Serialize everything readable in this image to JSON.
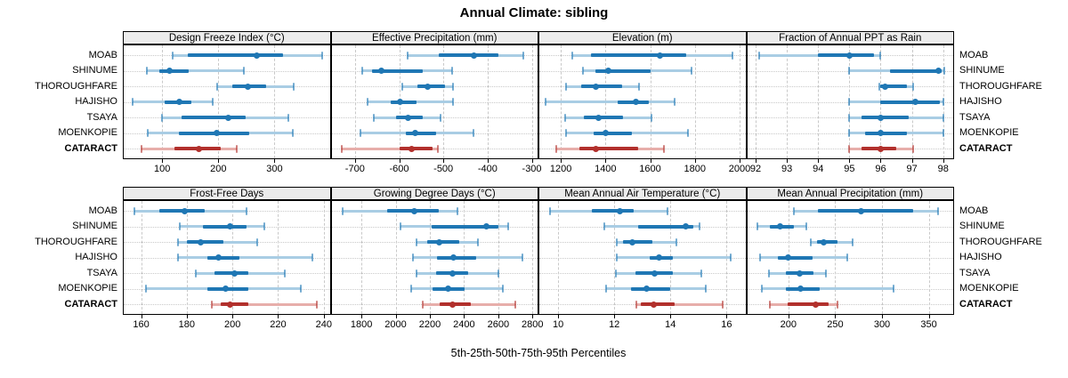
{
  "title": "Annual Climate: sibling",
  "xlabel": "5th-25th-50th-75th-95th Percentiles",
  "sites": [
    "MOAB",
    "SHINUME",
    "THOROUGHFARE",
    "HAJISHO",
    "TSAYA",
    "MOENKOPIE",
    "CATARACT"
  ],
  "highlight_site": "CATARACT",
  "colors": {
    "series_dark": "#1f77b4",
    "series_light": "#a9cde4",
    "highlight_dark": "#b2302c",
    "highlight_light": "#e7aeaa",
    "strip_bg": "#ececec",
    "grid": "#c9c9c9",
    "border": "#000000"
  },
  "chart_data": {
    "type": "percentile-dotplot",
    "percentiles": [
      5,
      25,
      50,
      75,
      95
    ],
    "legend_position": "none",
    "grid": "dashed-vertical, dotted-horizontal",
    "sites": [
      "MOAB",
      "SHINUME",
      "THOROUGHFARE",
      "HAJISHO",
      "TSAYA",
      "MOENKOPIE",
      "CATARACT"
    ],
    "panels": [
      {
        "title": "Design Freeze Index (°C)",
        "row": 0,
        "col": 0,
        "xlim": [
          30,
          400
        ],
        "tick_values": [
          100,
          200,
          300
        ],
        "tick_labels": [
          "100",
          "200",
          "300"
        ],
        "values": [
          [
            118,
            145,
            268,
            315,
            385
          ],
          [
            72,
            95,
            113,
            148,
            246
          ],
          [
            198,
            225,
            252,
            285,
            335
          ],
          [
            48,
            105,
            130,
            152,
            190
          ],
          [
            100,
            135,
            218,
            248,
            325
          ],
          [
            75,
            130,
            197,
            255,
            333
          ],
          [
            64,
            122,
            165,
            204,
            233
          ]
        ]
      },
      {
        "title": "Effective Precipitation (mm)",
        "row": 0,
        "col": 1,
        "xlim": [
          -755,
          -285
        ],
        "tick_values": [
          -700,
          -600,
          -500,
          -400,
          -300
        ],
        "tick_labels": [
          "-700",
          "-600",
          "-500",
          "-400",
          "-300"
        ],
        "values": [
          [
            -580,
            -510,
            -430,
            -375,
            -320
          ],
          [
            -683,
            -662,
            -641,
            -546,
            -481
          ],
          [
            -592,
            -558,
            -536,
            -497,
            -478
          ],
          [
            -672,
            -620,
            -597,
            -560,
            -479
          ],
          [
            -658,
            -607,
            -580,
            -547,
            -507
          ],
          [
            -688,
            -585,
            -563,
            -517,
            -432
          ],
          [
            -730,
            -600,
            -572,
            -524,
            -512
          ]
        ]
      },
      {
        "title": "Elevation (m)",
        "row": 0,
        "col": 2,
        "xlim": [
          1100,
          2030
        ],
        "tick_values": [
          1200,
          1400,
          1600,
          1800,
          2000
        ],
        "tick_labels": [
          "1200",
          "1400",
          "1600",
          "1800",
          "2000"
        ],
        "values": [
          [
            1250,
            1335,
            1645,
            1760,
            1970
          ],
          [
            1300,
            1355,
            1412,
            1600,
            1785
          ],
          [
            1225,
            1290,
            1357,
            1475,
            1550
          ],
          [
            1130,
            1455,
            1535,
            1595,
            1710
          ],
          [
            1220,
            1305,
            1370,
            1480,
            1605
          ],
          [
            1225,
            1345,
            1400,
            1520,
            1770
          ],
          [
            1180,
            1285,
            1355,
            1548,
            1663
          ]
        ]
      },
      {
        "title": "Fraction of Annual PPT as Rain",
        "row": 0,
        "col": 3,
        "xlim": [
          91.7,
          98.35
        ],
        "tick_values": [
          92,
          93,
          94,
          95,
          96,
          97,
          98
        ],
        "tick_labels": [
          "92",
          "93",
          "94",
          "95",
          "96",
          "97",
          "98"
        ],
        "values": [
          [
            92.1,
            94.0,
            95.0,
            95.8,
            96.0
          ],
          [
            95.0,
            96.3,
            97.85,
            97.95,
            98.05
          ],
          [
            95.95,
            96.0,
            96.15,
            96.85,
            97.05
          ],
          [
            95.0,
            96.0,
            97.1,
            97.9,
            98.0
          ],
          [
            95.0,
            95.4,
            96.0,
            96.9,
            98.0
          ],
          [
            95.0,
            95.5,
            96.0,
            96.85,
            98.0
          ],
          [
            95.0,
            95.4,
            96.0,
            96.5,
            97.05
          ]
        ]
      },
      {
        "title": "Frost-Free Days",
        "row": 1,
        "col": 0,
        "xlim": [
          152,
          243
        ],
        "tick_values": [
          160,
          180,
          200,
          220,
          240
        ],
        "tick_labels": [
          "160",
          "180",
          "200",
          "220",
          "240"
        ],
        "values": [
          [
            157,
            168,
            179,
            188,
            206
          ],
          [
            177,
            187,
            199,
            206,
            214
          ],
          [
            176,
            180,
            186,
            196,
            211
          ],
          [
            176,
            189,
            194,
            203,
            235
          ],
          [
            184,
            192,
            201,
            207,
            223
          ],
          [
            162,
            189,
            197,
            207,
            230
          ],
          [
            191,
            195,
            199,
            207,
            237
          ]
        ]
      },
      {
        "title": "Growing Degree Days (°C)",
        "row": 1,
        "col": 1,
        "xlim": [
          1620,
          2835
        ],
        "tick_values": [
          1800,
          2000,
          2200,
          2400,
          2600,
          2800
        ],
        "tick_labels": [
          "1800",
          "2000",
          "2200",
          "2400",
          "2600",
          "2800"
        ],
        "values": [
          [
            1690,
            1950,
            2110,
            2250,
            2360
          ],
          [
            2030,
            2210,
            2530,
            2600,
            2660
          ],
          [
            2120,
            2185,
            2255,
            2370,
            2480
          ],
          [
            2100,
            2240,
            2340,
            2470,
            2740
          ],
          [
            2120,
            2235,
            2335,
            2425,
            2600
          ],
          [
            2090,
            2215,
            2305,
            2405,
            2625
          ],
          [
            2160,
            2255,
            2335,
            2440,
            2700
          ]
        ]
      },
      {
        "title": "Mean Annual Air Temperature (°C)",
        "row": 1,
        "col": 2,
        "xlim": [
          9.3,
          16.7
        ],
        "tick_values": [
          10,
          12,
          14,
          16
        ],
        "tick_labels": [
          "10",
          "12",
          "14",
          "16"
        ],
        "values": [
          [
            9.7,
            11.2,
            12.2,
            12.7,
            13.9
          ],
          [
            11.65,
            12.85,
            14.55,
            14.8,
            15.05
          ],
          [
            12.1,
            12.3,
            12.65,
            13.35,
            14.2
          ],
          [
            12.1,
            13.25,
            13.6,
            14.1,
            16.15
          ],
          [
            12.05,
            12.75,
            13.45,
            14.1,
            15.1
          ],
          [
            11.7,
            12.6,
            13.15,
            14.0,
            15.25
          ],
          [
            12.8,
            12.95,
            13.4,
            14.15,
            15.85
          ]
        ]
      },
      {
        "title": "Mean Annual Precipitation (mm)",
        "row": 1,
        "col": 3,
        "xlim": [
          155,
          377
        ],
        "tick_values": [
          200,
          250,
          300,
          350
        ],
        "tick_labels": [
          "200",
          "250",
          "300",
          "350"
        ],
        "values": [
          [
            206,
            232,
            278,
            333,
            360
          ],
          [
            167,
            180,
            191,
            206,
            219
          ],
          [
            224,
            231,
            238,
            252,
            269
          ],
          [
            170,
            189,
            200,
            226,
            263
          ],
          [
            179,
            197,
            212,
            227,
            240
          ],
          [
            172,
            197,
            213,
            233,
            312
          ],
          [
            180,
            199,
            229,
            243,
            252
          ]
        ]
      }
    ]
  }
}
